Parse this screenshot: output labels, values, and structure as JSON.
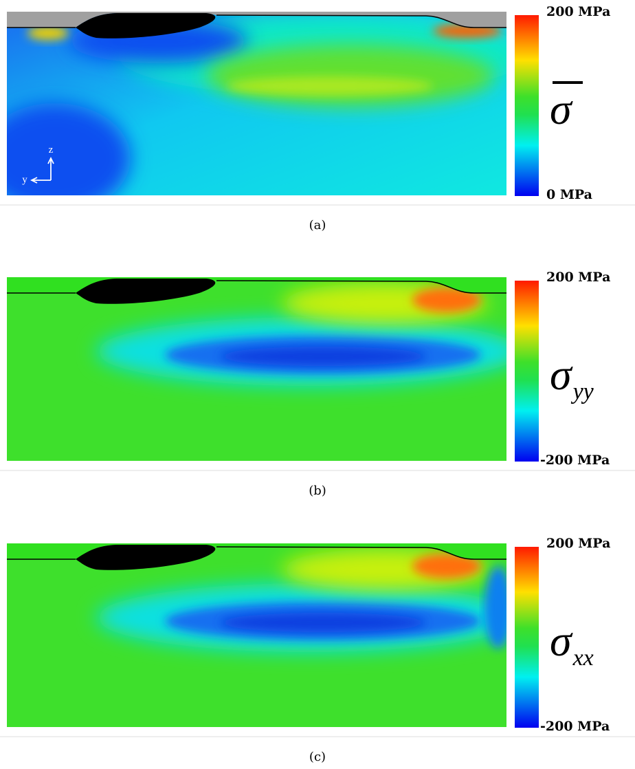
{
  "panels": [
    {
      "caption": "(a)",
      "colorbar": {
        "max_label": "200 MPa",
        "min_label": "0 MPa"
      },
      "symbol": "σ",
      "axes": {
        "z": "z",
        "y": "y"
      }
    },
    {
      "caption": "(b)",
      "colorbar": {
        "max_label": "200 MPa",
        "min_label": "-200 MPa"
      },
      "symbol": "σ",
      "subscript": "yy"
    },
    {
      "caption": "(c)",
      "colorbar": {
        "max_label": "200 MPa",
        "min_label": "-200 MPa"
      },
      "symbol": "σ",
      "subscript": "xx"
    }
  ]
}
